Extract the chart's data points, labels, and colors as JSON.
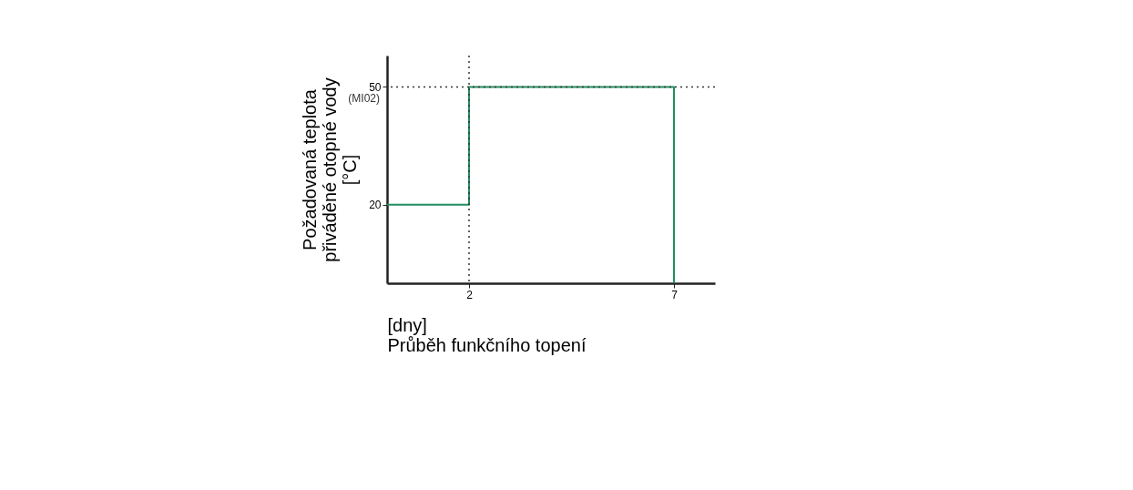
{
  "chart_data": {
    "type": "step",
    "xlabel": "Průběh funkčního topení",
    "ylabel": "Požadovaná teplota přiváděné otopné vody",
    "annotations": [
      "[°C]",
      "[dny]",
      {
        "text": "(MI02)",
        "x": 0,
        "y": 50
      }
    ],
    "x": [
      0,
      2,
      7,
      7
    ],
    "series": [
      {
        "color": "#1f8f5f",
        "values": [
          20,
          50,
          50,
          0
        ]
      }
    ],
    "xlim": [
      0,
      8
    ],
    "ylim": [
      0,
      58
    ],
    "xticks": [
      2,
      7
    ],
    "yticks": [
      20,
      50
    ],
    "ref_lines": [
      {
        "axis": "y",
        "value": 50,
        "line_style": "dotted",
        "color": "#333333"
      },
      {
        "axis": "x",
        "value": 2,
        "line_style": "dotted",
        "color": "#333333"
      }
    ],
    "grid": false
  }
}
